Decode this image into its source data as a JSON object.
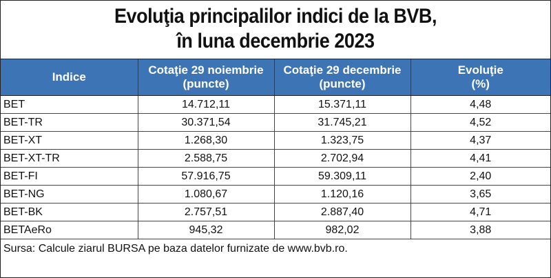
{
  "title": {
    "line1": "Evoluţia principalilor indici de la BVB,",
    "line2": "în luna decembrie 2023"
  },
  "table": {
    "headers": [
      {
        "lines": [
          "Indice"
        ]
      },
      {
        "lines": [
          "Cotaţie 29 noiembrie",
          "(puncte)"
        ]
      },
      {
        "lines": [
          "Cotaţie 29 decembrie",
          "(puncte)"
        ]
      },
      {
        "lines": [
          "Evoluţie",
          "(%)"
        ]
      }
    ],
    "rows": [
      [
        "BET",
        "14.712,11",
        "15.371,11",
        "4,48"
      ],
      [
        "BET-TR",
        "30.371,54",
        "31.745,21",
        "4,52"
      ],
      [
        "BET-XT",
        "1.268,30",
        "1.323,75",
        "4,37"
      ],
      [
        "BET-XT-TR",
        "2.588,75",
        "2.702,94",
        "4,41"
      ],
      [
        "BET-FI",
        "57.916,75",
        "59.309,11",
        "2,40"
      ],
      [
        "BET-NG",
        "1.080,67",
        "1.120,16",
        "3,65"
      ],
      [
        "BET-BK",
        "2.757,51",
        "2.887,40",
        "4,71"
      ],
      [
        "BETAeRo",
        "945,32",
        "982,02",
        "3,88"
      ]
    ],
    "source": "Sursa: Calcule ziarul BURSA pe baza datelor furnizate de www.bvb.ro."
  },
  "colors": {
    "header_bg": "#3d74b5",
    "header_text": "#ffffff"
  }
}
